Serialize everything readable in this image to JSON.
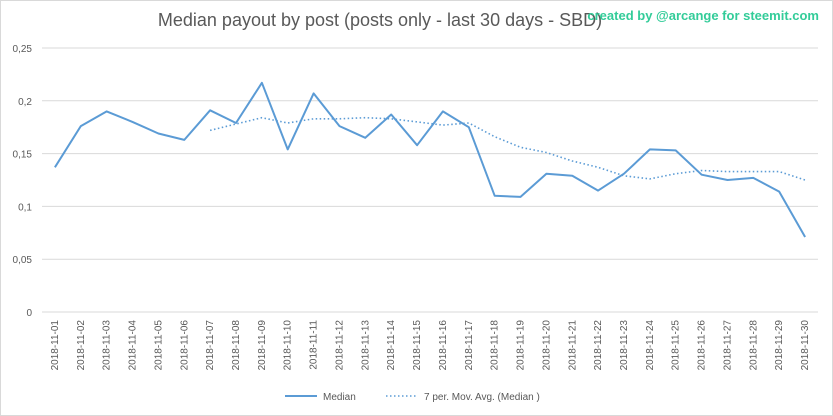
{
  "header": {
    "title": "Median payout by post (posts only - last 30 days - SBD)",
    "credit": "created by @arcange for steemit.com"
  },
  "chart_data": {
    "type": "line",
    "title": "Median payout by post (posts only - last 30 days - SBD)",
    "xlabel": "",
    "ylabel": "",
    "ylim": [
      0,
      0.25
    ],
    "y_ticks": [
      "0",
      "0,05",
      "0,1",
      "0,15",
      "0,2",
      "0,25"
    ],
    "y_tick_values": [
      0,
      0.05,
      0.1,
      0.15,
      0.2,
      0.25
    ],
    "grid": "horizontal",
    "legend_position": "bottom",
    "categories": [
      "2018-11-01",
      "2018-11-02",
      "2018-11-03",
      "2018-11-04",
      "2018-11-05",
      "2018-11-06",
      "2018-11-07",
      "2018-11-08",
      "2018-11-09",
      "2018-11-10",
      "2018-11-11",
      "2018-11-12",
      "2018-11-13",
      "2018-11-14",
      "2018-11-15",
      "2018-11-16",
      "2018-11-17",
      "2018-11-18",
      "2018-11-19",
      "2018-11-20",
      "2018-11-21",
      "2018-11-22",
      "2018-11-23",
      "2018-11-24",
      "2018-11-25",
      "2018-11-26",
      "2018-11-27",
      "2018-11-28",
      "2018-11-29",
      "2018-11-30"
    ],
    "series": [
      {
        "name": "Median",
        "color": "#5b9bd5",
        "style": "solid",
        "values": [
          0.137,
          0.176,
          0.19,
          0.18,
          0.169,
          0.163,
          0.191,
          0.179,
          0.217,
          0.154,
          0.207,
          0.176,
          0.165,
          0.187,
          0.158,
          0.19,
          0.175,
          0.11,
          0.109,
          0.131,
          0.129,
          0.115,
          0.131,
          0.154,
          0.153,
          0.13,
          0.125,
          0.127,
          0.114,
          0.071
        ]
      },
      {
        "name": "7 per. Mov. Avg. (Median )",
        "color": "#5b9bd5",
        "style": "dotted",
        "values": [
          null,
          null,
          null,
          null,
          null,
          null,
          0.172,
          0.178,
          0.184,
          0.179,
          0.183,
          0.183,
          0.184,
          0.183,
          0.18,
          0.177,
          0.179,
          0.166,
          0.156,
          0.151,
          0.143,
          0.137,
          0.129,
          0.126,
          0.131,
          0.134,
          0.133,
          0.133,
          0.133,
          0.125
        ]
      }
    ]
  }
}
